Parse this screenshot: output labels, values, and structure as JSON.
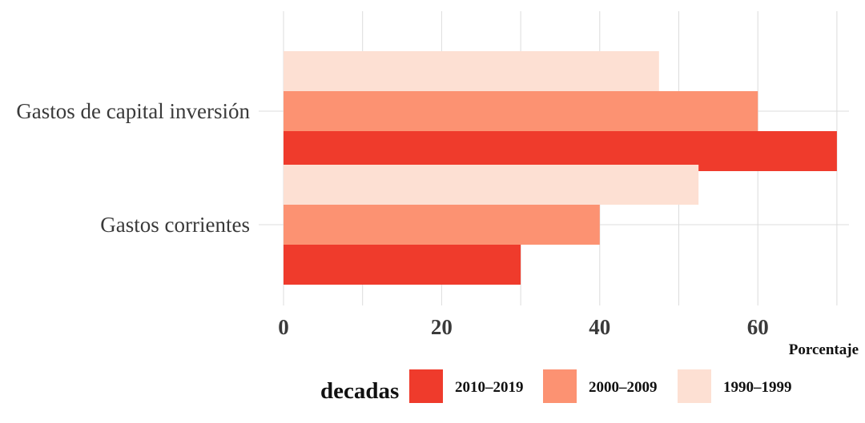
{
  "chart_data": {
    "type": "bar",
    "orientation": "horizontal",
    "categories": [
      "Gastos de capital inversión",
      "Gastos corrientes"
    ],
    "series": [
      {
        "name": "1990–1999",
        "color": "#fde0d3",
        "values": [
          47.5,
          52.5
        ]
      },
      {
        "name": "2000–2009",
        "color": "#fc9272",
        "values": [
          60.0,
          40.0
        ]
      },
      {
        "name": "2010–2019",
        "color": "#ef3b2c",
        "values": [
          70.0,
          30.0
        ]
      }
    ],
    "xlabel": "Porcentaje",
    "ylabel": "",
    "xlim": [
      0,
      70
    ],
    "xticks": [
      0,
      20,
      40,
      60
    ],
    "grid": true,
    "legend": {
      "title": "decadas",
      "position": "bottom",
      "order": [
        "2010–2019",
        "2000–2009",
        "1990–1999"
      ]
    }
  }
}
